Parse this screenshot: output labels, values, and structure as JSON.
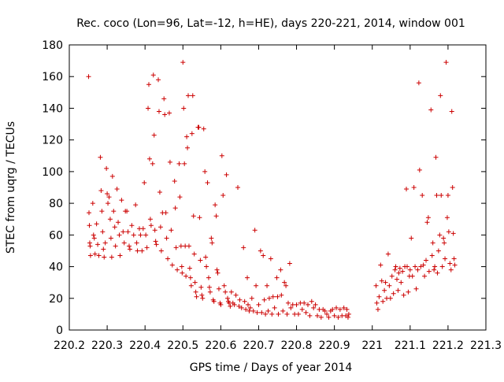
{
  "chart_data": {
    "type": "scatter",
    "title": "Rec. coco (Lon=96, Lat=-12, h=HE), days 220-221, 2014, window 001",
    "xlabel": "GPS time / Days of year 2014",
    "ylabel": "STEC from uqrg / TECUs",
    "xlim": [
      220.2,
      221.3
    ],
    "ylim": [
      0,
      180
    ],
    "x_ticks": [
      220.2,
      220.3,
      220.4,
      220.5,
      220.6,
      220.7,
      220.8,
      220.9,
      221,
      221.1,
      221.2,
      221.3
    ],
    "x_tick_labels": [
      "220.2",
      "220.3",
      "220.4",
      "220.5",
      "220.6",
      "220.7",
      "220.8",
      "220.9",
      "221",
      "221.1",
      "221.2",
      "221.3"
    ],
    "y_ticks": [
      0,
      20,
      40,
      60,
      80,
      100,
      120,
      140,
      160,
      180
    ],
    "y_tick_labels": [
      "0",
      "20",
      "40",
      "60",
      "80",
      "100",
      "120",
      "140",
      "160",
      "180"
    ],
    "grid": false,
    "marker": "plus",
    "marker_color": "#cc0000",
    "series": [
      {
        "points": [
          [
            220.251,
            160
          ],
          [
            220.252,
            74
          ],
          [
            220.253,
            66
          ],
          [
            220.254,
            55
          ],
          [
            220.255,
            53
          ],
          [
            220.256,
            47
          ],
          [
            220.262,
            80
          ],
          [
            220.264,
            60
          ],
          [
            220.266,
            58
          ],
          [
            220.268,
            48
          ],
          [
            220.272,
            67
          ],
          [
            220.275,
            54
          ],
          [
            220.278,
            47
          ],
          [
            220.282,
            109
          ],
          [
            220.284,
            88
          ],
          [
            220.286,
            75
          ],
          [
            220.288,
            62
          ],
          [
            220.29,
            51
          ],
          [
            220.292,
            46
          ],
          [
            220.295,
            55
          ],
          [
            220.298,
            102
          ],
          [
            220.3,
            86
          ],
          [
            220.302,
            80
          ],
          [
            220.305,
            84
          ],
          [
            220.308,
            70
          ],
          [
            220.31,
            58
          ],
          [
            220.312,
            46
          ],
          [
            220.314,
            97
          ],
          [
            220.317,
            75
          ],
          [
            220.32,
            65
          ],
          [
            220.322,
            53
          ],
          [
            220.326,
            89
          ],
          [
            220.329,
            68
          ],
          [
            220.332,
            60
          ],
          [
            220.334,
            47
          ],
          [
            220.338,
            82
          ],
          [
            220.342,
            62
          ],
          [
            220.345,
            55
          ],
          [
            220.348,
            75
          ],
          [
            220.352,
            75
          ],
          [
            220.355,
            62
          ],
          [
            220.358,
            53
          ],
          [
            220.36,
            51
          ],
          [
            220.365,
            66
          ],
          [
            220.37,
            60
          ],
          [
            220.375,
            79
          ],
          [
            220.378,
            55
          ],
          [
            220.38,
            50
          ],
          [
            220.385,
            64
          ],
          [
            220.388,
            60
          ],
          [
            220.392,
            50
          ],
          [
            220.395,
            64
          ],
          [
            220.398,
            93
          ],
          [
            220.402,
            60
          ],
          [
            220.405,
            52
          ],
          [
            220.408,
            140
          ],
          [
            220.41,
            155
          ],
          [
            220.412,
            108
          ],
          [
            220.414,
            70
          ],
          [
            220.416,
            66
          ],
          [
            220.42,
            105
          ],
          [
            220.422,
            161
          ],
          [
            220.424,
            123
          ],
          [
            220.426,
            63
          ],
          [
            220.428,
            56
          ],
          [
            220.43,
            54
          ],
          [
            220.435,
            158
          ],
          [
            220.437,
            138
          ],
          [
            220.439,
            87
          ],
          [
            220.441,
            65
          ],
          [
            220.443,
            50
          ],
          [
            220.446,
            74
          ],
          [
            220.45,
            146
          ],
          [
            220.452,
            136
          ],
          [
            220.455,
            74
          ],
          [
            220.457,
            58
          ],
          [
            220.46,
            45
          ],
          [
            220.464,
            137
          ],
          [
            220.466,
            106
          ],
          [
            220.469,
            63
          ],
          [
            220.472,
            41
          ],
          [
            220.478,
            94
          ],
          [
            220.48,
            77
          ],
          [
            220.482,
            52
          ],
          [
            220.485,
            38
          ],
          [
            220.49,
            105
          ],
          [
            220.492,
            84
          ],
          [
            220.495,
            53
          ],
          [
            220.497,
            40
          ],
          [
            220.498,
            36
          ],
          [
            220.5,
            169
          ],
          [
            220.502,
            140
          ],
          [
            220.504,
            105
          ],
          [
            220.506,
            53
          ],
          [
            220.508,
            34
          ],
          [
            220.51,
            122
          ],
          [
            220.512,
            115
          ],
          [
            220.514,
            148
          ],
          [
            220.516,
            53
          ],
          [
            220.518,
            39
          ],
          [
            220.52,
            33
          ],
          [
            220.522,
            28
          ],
          [
            220.524,
            124
          ],
          [
            220.526,
            148
          ],
          [
            220.528,
            72
          ],
          [
            220.53,
            48
          ],
          [
            220.532,
            30
          ],
          [
            220.534,
            24
          ],
          [
            220.536,
            21
          ],
          [
            220.54,
            128
          ],
          [
            220.542,
            128
          ],
          [
            220.544,
            71
          ],
          [
            220.546,
            44
          ],
          [
            220.548,
            27
          ],
          [
            220.55,
            22
          ],
          [
            220.552,
            20
          ],
          [
            220.555,
            127
          ],
          [
            220.558,
            100
          ],
          [
            220.56,
            46
          ],
          [
            220.562,
            40
          ],
          [
            220.565,
            93
          ],
          [
            220.568,
            33
          ],
          [
            220.57,
            27
          ],
          [
            220.572,
            24
          ],
          [
            220.575,
            58
          ],
          [
            220.577,
            55
          ],
          [
            220.58,
            19
          ],
          [
            220.582,
            18
          ],
          [
            220.585,
            79
          ],
          [
            220.588,
            72
          ],
          [
            220.59,
            38
          ],
          [
            220.592,
            36
          ],
          [
            220.595,
            26
          ],
          [
            220.598,
            17
          ],
          [
            220.6,
            16
          ],
          [
            220.603,
            110
          ],
          [
            220.606,
            85
          ],
          [
            220.609,
            28
          ],
          [
            220.612,
            24
          ],
          [
            220.615,
            98
          ],
          [
            220.618,
            20
          ],
          [
            220.62,
            18
          ],
          [
            220.622,
            17
          ],
          [
            220.625,
            15
          ],
          [
            220.628,
            24
          ],
          [
            220.632,
            17
          ],
          [
            220.636,
            16
          ],
          [
            220.64,
            22
          ],
          [
            220.645,
            90
          ],
          [
            220.648,
            15
          ],
          [
            220.65,
            19
          ],
          [
            220.655,
            14
          ],
          [
            220.66,
            52
          ],
          [
            220.663,
            18
          ],
          [
            220.666,
            13
          ],
          [
            220.67,
            33
          ],
          [
            220.672,
            16
          ],
          [
            220.675,
            12
          ],
          [
            220.678,
            14
          ],
          [
            220.682,
            20
          ],
          [
            220.686,
            12
          ],
          [
            220.69,
            63
          ],
          [
            220.693,
            28
          ],
          [
            220.696,
            11
          ],
          [
            220.7,
            16
          ],
          [
            220.705,
            50
          ],
          [
            220.708,
            11
          ],
          [
            220.712,
            47
          ],
          [
            220.715,
            19
          ],
          [
            220.718,
            10
          ],
          [
            220.722,
            28
          ],
          [
            220.725,
            12
          ],
          [
            220.728,
            20
          ],
          [
            220.732,
            45
          ],
          [
            220.735,
            10
          ],
          [
            220.738,
            21
          ],
          [
            220.742,
            14
          ],
          [
            220.748,
            33
          ],
          [
            220.75,
            21
          ],
          [
            220.752,
            10
          ],
          [
            220.758,
            38
          ],
          [
            220.76,
            22
          ],
          [
            220.764,
            12
          ],
          [
            220.768,
            30
          ],
          [
            220.772,
            28
          ],
          [
            220.775,
            10
          ],
          [
            220.778,
            17
          ],
          [
            220.782,
            42
          ],
          [
            220.785,
            14
          ],
          [
            220.79,
            16
          ],
          [
            220.795,
            10
          ],
          [
            220.8,
            16
          ],
          [
            220.805,
            10
          ],
          [
            220.81,
            17
          ],
          [
            220.815,
            13
          ],
          [
            220.82,
            17
          ],
          [
            220.825,
            11
          ],
          [
            220.83,
            16
          ],
          [
            220.835,
            9
          ],
          [
            220.84,
            18
          ],
          [
            220.845,
            14
          ],
          [
            220.85,
            16
          ],
          [
            220.855,
            9
          ],
          [
            220.86,
            13
          ],
          [
            220.865,
            8
          ],
          [
            220.87,
            13
          ],
          [
            220.875,
            12
          ],
          [
            220.88,
            10
          ],
          [
            220.885,
            8
          ],
          [
            220.89,
            12
          ],
          [
            220.895,
            13
          ],
          [
            220.9,
            9
          ],
          [
            220.905,
            14
          ],
          [
            220.91,
            8
          ],
          [
            220.915,
            13
          ],
          [
            220.92,
            9
          ],
          [
            220.925,
            14
          ],
          [
            220.93,
            9
          ],
          [
            220.933,
            13
          ],
          [
            220.936,
            8
          ],
          [
            220.938,
            10
          ],
          [
            221.01,
            28
          ],
          [
            221.012,
            17
          ],
          [
            221.015,
            13
          ],
          [
            221.018,
            21
          ],
          [
            221.022,
            41
          ],
          [
            221.025,
            31
          ],
          [
            221.028,
            18
          ],
          [
            221.032,
            25
          ],
          [
            221.035,
            30
          ],
          [
            221.038,
            20
          ],
          [
            221.042,
            48
          ],
          [
            221.045,
            28
          ],
          [
            221.048,
            20
          ],
          [
            221.052,
            34
          ],
          [
            221.056,
            23
          ],
          [
            221.06,
            38
          ],
          [
            221.062,
            40
          ],
          [
            221.065,
            32
          ],
          [
            221.068,
            25
          ],
          [
            221.07,
            36
          ],
          [
            221.073,
            39
          ],
          [
            221.076,
            30
          ],
          [
            221.08,
            37
          ],
          [
            221.083,
            22
          ],
          [
            221.086,
            40
          ],
          [
            221.09,
            89
          ],
          [
            221.092,
            40
          ],
          [
            221.095,
            24
          ],
          [
            221.098,
            34
          ],
          [
            221.1,
            38
          ],
          [
            221.103,
            58
          ],
          [
            221.106,
            34
          ],
          [
            221.11,
            90
          ],
          [
            221.113,
            40
          ],
          [
            221.116,
            26
          ],
          [
            221.12,
            38
          ],
          [
            221.123,
            156
          ],
          [
            221.125,
            101
          ],
          [
            221.128,
            40
          ],
          [
            221.132,
            85
          ],
          [
            221.135,
            41
          ],
          [
            221.138,
            34
          ],
          [
            221.142,
            44
          ],
          [
            221.145,
            68
          ],
          [
            221.148,
            71
          ],
          [
            221.15,
            37
          ],
          [
            221.155,
            139
          ],
          [
            221.158,
            47
          ],
          [
            221.16,
            55
          ],
          [
            221.163,
            38
          ],
          [
            221.165,
            40
          ],
          [
            221.168,
            109
          ],
          [
            221.17,
            85
          ],
          [
            221.172,
            36
          ],
          [
            221.175,
            50
          ],
          [
            221.178,
            60
          ],
          [
            221.18,
            148
          ],
          [
            221.182,
            85
          ],
          [
            221.185,
            40
          ],
          [
            221.188,
            58
          ],
          [
            221.19,
            55
          ],
          [
            221.192,
            45
          ],
          [
            221.195,
            169
          ],
          [
            221.198,
            71
          ],
          [
            221.2,
            85
          ],
          [
            221.202,
            62
          ],
          [
            221.205,
            42
          ],
          [
            221.208,
            38
          ],
          [
            221.21,
            138
          ],
          [
            221.212,
            90
          ],
          [
            221.214,
            61
          ],
          [
            221.216,
            45
          ],
          [
            221.218,
            41
          ]
        ]
      }
    ]
  }
}
